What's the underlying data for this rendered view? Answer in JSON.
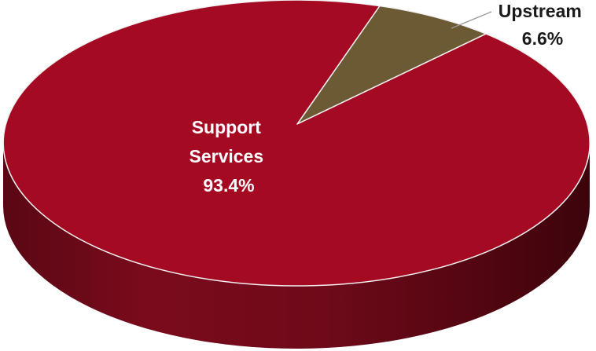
{
  "chart_data": {
    "type": "pie",
    "style": "3d",
    "slices": [
      {
        "label_lines": [
          "Support",
          "Services"
        ],
        "value": 93.4,
        "value_text": "93.4%",
        "color": "#A50A23",
        "label_color": "#ffffff",
        "label_position": "inside"
      },
      {
        "label_lines": [
          "Upstream"
        ],
        "value": 6.6,
        "value_text": "6.6%",
        "color": "#6B5A34",
        "label_color": "#1a1a1a",
        "label_position": "outside-leader"
      }
    ]
  }
}
